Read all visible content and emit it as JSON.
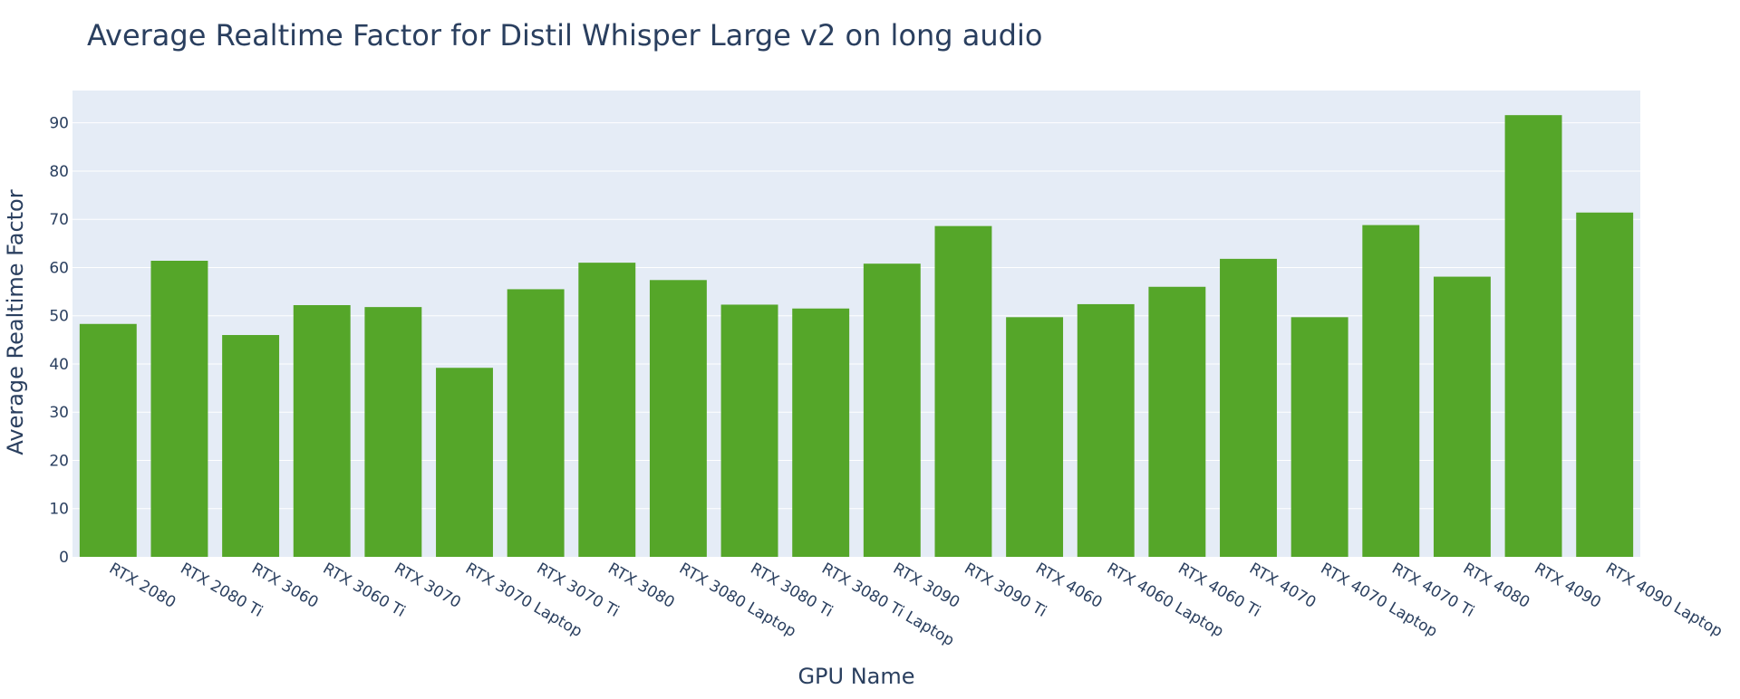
{
  "chart_data": {
    "type": "bar",
    "title": "Average Realtime Factor for Distil Whisper Large v2 on long audio",
    "xlabel": "GPU Name",
    "ylabel": "Average Realtime Factor",
    "categories": [
      "RTX 2080",
      "RTX 2080 Ti",
      "RTX 3060",
      "RTX 3060 Ti",
      "RTX 3070",
      "RTX 3070 Laptop",
      "RTX 3070 Ti",
      "RTX 3080",
      "RTX 3080 Laptop",
      "RTX 3080 Ti",
      "RTX 3080 Ti Laptop",
      "RTX 3090",
      "RTX 3090 Ti",
      "RTX 4060",
      "RTX 4060 Laptop",
      "RTX 4060 Ti",
      "RTX 4070",
      "RTX 4070 Laptop",
      "RTX 4070 Ti",
      "RTX 4080",
      "RTX 4090",
      "RTX 4090 Laptop"
    ],
    "values": [
      48.3,
      61.4,
      46.0,
      52.2,
      51.8,
      39.2,
      55.5,
      61.0,
      57.4,
      52.3,
      51.5,
      60.8,
      68.6,
      49.7,
      52.4,
      56.0,
      61.8,
      49.7,
      68.8,
      58.1,
      91.6,
      71.4
    ],
    "ylim": [
      0,
      96.7
    ],
    "yticks": [
      0,
      10,
      20,
      30,
      40,
      50,
      60,
      70,
      80,
      90
    ],
    "grid": true,
    "legend": "none",
    "colors": {
      "bar": "#55a629",
      "plot_bg": "#e5ecf6",
      "grid": "#ffffff",
      "text": "#2a3f5f"
    }
  }
}
